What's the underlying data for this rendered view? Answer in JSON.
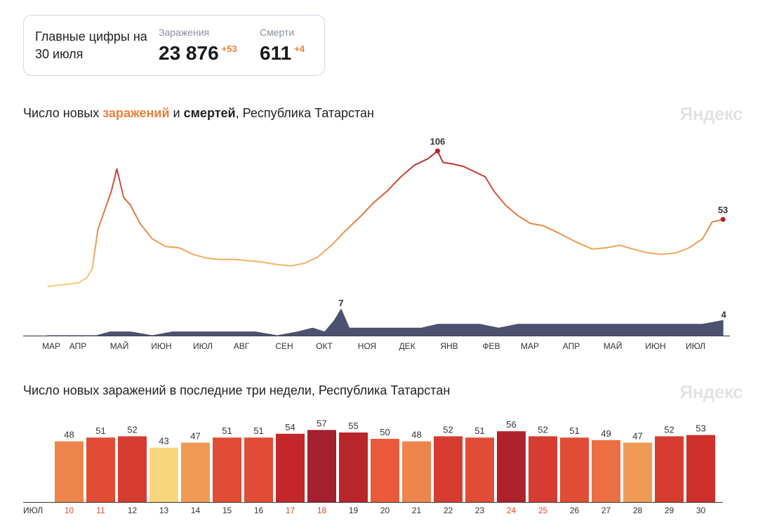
{
  "summary": {
    "title": "Главные цифры на 30 июля",
    "infections": {
      "label": "Заражения",
      "value": "23 876",
      "delta": "+53"
    },
    "deaths": {
      "label": "Смерти",
      "value": "611",
      "delta": "+4"
    }
  },
  "brand": "Яндекс",
  "chart1": {
    "title_prefix": "Число новых",
    "title_infections": "заражений",
    "title_and": "и",
    "title_deaths": "смертей",
    "title_suffix": ", Республика Татарстан"
  },
  "chart2": {
    "title": "Число новых заражений в последние три недели, Республика Татарстан"
  },
  "colors": {
    "accent": "#e9813a",
    "deaths": "#4d516f",
    "low": "#f8d67e",
    "high": "#a3202e"
  },
  "chart_data": [
    {
      "type": "line",
      "title": "Число новых заражений и смертей, Республика Татарстан",
      "x_ticks": [
        "МАР",
        "АПР",
        "МАЙ",
        "ИЮН",
        "ИЮЛ",
        "АВГ",
        "СЕН",
        "ОКТ",
        "НОЯ",
        "ДЕК",
        "ЯНВ",
        "ФЕВ",
        "МАР",
        "АПР",
        "МАЙ",
        "ИЮН",
        "ИЮЛ"
      ],
      "series": [
        {
          "name": "заражений",
          "peak_label": "106",
          "last_label": "53",
          "x": [
            "2020-03-20",
            "2020-03-28",
            "2020-04-05",
            "2020-04-12",
            "2020-04-18",
            "2020-04-22",
            "2020-04-26",
            "2020-05-01",
            "2020-05-06",
            "2020-05-10",
            "2020-05-15",
            "2020-05-20",
            "2020-05-27",
            "2020-06-05",
            "2020-06-15",
            "2020-06-25",
            "2020-07-05",
            "2020-07-15",
            "2020-07-25",
            "2020-08-05",
            "2020-08-15",
            "2020-08-25",
            "2020-09-05",
            "2020-09-15",
            "2020-09-25",
            "2020-10-05",
            "2020-10-15",
            "2020-10-25",
            "2020-11-05",
            "2020-11-15",
            "2020-11-25",
            "2020-12-05",
            "2020-12-15",
            "2020-12-25",
            "2021-01-01",
            "2021-01-05",
            "2021-01-12",
            "2021-01-20",
            "2021-01-28",
            "2021-02-05",
            "2021-02-12",
            "2021-02-20",
            "2021-03-01",
            "2021-03-10",
            "2021-03-20",
            "2021-04-01",
            "2021-04-12",
            "2021-04-25",
            "2021-05-05",
            "2021-05-15",
            "2021-05-25",
            "2021-06-05",
            "2021-06-15",
            "2021-06-25",
            "2021-07-05",
            "2021-07-15",
            "2021-07-22",
            "2021-07-30"
          ],
          "y": [
            1,
            2,
            3,
            4,
            8,
            15,
            45,
            60,
            75,
            92,
            70,
            64,
            50,
            38,
            32,
            31,
            26,
            23,
            22,
            22,
            21,
            20,
            18,
            17,
            19,
            24,
            33,
            44,
            55,
            66,
            75,
            86,
            95,
            100,
            106,
            97,
            96,
            94,
            90,
            86,
            74,
            64,
            56,
            50,
            48,
            42,
            36,
            30,
            31,
            33,
            30,
            27,
            26,
            27,
            31,
            38,
            51,
            53
          ]
        },
        {
          "name": "смертей",
          "peak_label": "7",
          "last_label": "4",
          "x": [
            "2020-03-20",
            "2020-04-10",
            "2020-04-25",
            "2020-05-05",
            "2020-05-20",
            "2020-06-05",
            "2020-06-20",
            "2020-07-05",
            "2020-07-20",
            "2020-08-05",
            "2020-08-20",
            "2020-09-05",
            "2020-09-20",
            "2020-10-01",
            "2020-10-10",
            "2020-10-17",
            "2020-10-22",
            "2020-10-28",
            "2020-11-05",
            "2020-11-20",
            "2020-12-05",
            "2020-12-20",
            "2021-01-01",
            "2021-01-10",
            "2021-01-20",
            "2021-02-01",
            "2021-02-15",
            "2021-03-01",
            "2021-03-15",
            "2021-04-01",
            "2021-04-15",
            "2021-05-01",
            "2021-05-15",
            "2021-06-01",
            "2021-06-15",
            "2021-07-01",
            "2021-07-15",
            "2021-07-30"
          ],
          "y": [
            0,
            0,
            0,
            1,
            1,
            0,
            1,
            1,
            1,
            1,
            1,
            0,
            1,
            2,
            1,
            4,
            7,
            2,
            2,
            2,
            2,
            2,
            3,
            3,
            3,
            3,
            2,
            3,
            3,
            3,
            3,
            3,
            3,
            3,
            3,
            3,
            3,
            4
          ]
        }
      ]
    },
    {
      "type": "bar",
      "title": "Число новых заражений в последние три недели, Республика Татарстан",
      "month_label": "ИЮЛ",
      "categories": [
        "10",
        "11",
        "12",
        "13",
        "14",
        "15",
        "16",
        "17",
        "18",
        "19",
        "20",
        "21",
        "22",
        "23",
        "24",
        "25",
        "26",
        "27",
        "28",
        "29",
        "30"
      ],
      "values": [
        48,
        51,
        52,
        43,
        47,
        51,
        51,
        54,
        57,
        55,
        50,
        48,
        52,
        51,
        56,
        52,
        51,
        49,
        47,
        52,
        53
      ],
      "highlighted_days": [
        "10",
        "11",
        "17",
        "18",
        "24",
        "25"
      ]
    }
  ]
}
